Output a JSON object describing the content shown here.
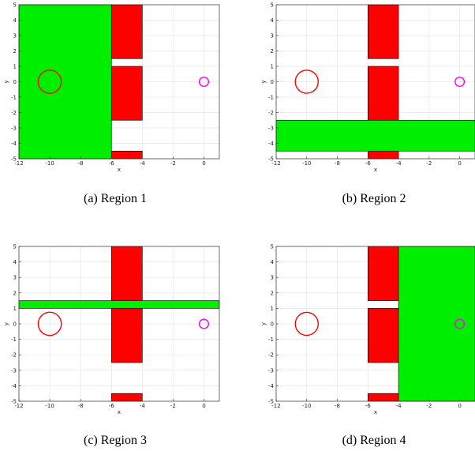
{
  "colors": {
    "free_region": "#00ee00",
    "obstacle": "#ff0000",
    "start_circle": "#ff0000",
    "goal_circle": "#ff00ff",
    "grid": "#e6e6e6",
    "axis": "#333333"
  },
  "chart_data": [
    {
      "type": "region-map",
      "caption": "(a) Region 1",
      "xlabel": "x",
      "ylabel": "y",
      "xlim": [
        -12,
        1
      ],
      "ylim": [
        -5,
        5
      ],
      "xticks": [
        -12,
        -10,
        -8,
        -6,
        -4,
        -2,
        0
      ],
      "yticks": [
        -5,
        -4,
        -3,
        -2,
        -1,
        0,
        1,
        2,
        3,
        4,
        5
      ],
      "grid": true,
      "obstacles": [
        {
          "x0": -6,
          "x1": -4,
          "y0": 1.5,
          "y1": 5
        },
        {
          "x0": -6,
          "x1": -4,
          "y0": -2.5,
          "y1": 1
        },
        {
          "x0": -6,
          "x1": -4,
          "y0": -5,
          "y1": -4.5
        }
      ],
      "region": {
        "x0": -12,
        "x1": -6,
        "y0": -5,
        "y1": 5
      },
      "start": {
        "x": -10,
        "y": 0,
        "r": 0.75
      },
      "goal": {
        "x": 0,
        "y": 0,
        "r": 0.3
      }
    },
    {
      "type": "region-map",
      "caption": "(b) Region 2",
      "xlabel": "x",
      "ylabel": "y",
      "xlim": [
        -12,
        1
      ],
      "ylim": [
        -5,
        5
      ],
      "xticks": [
        -12,
        -10,
        -8,
        -6,
        -4,
        -2,
        0
      ],
      "yticks": [
        -5,
        -4,
        -3,
        -2,
        -1,
        0,
        1,
        2,
        3,
        4,
        5
      ],
      "grid": true,
      "obstacles": [
        {
          "x0": -6,
          "x1": -4,
          "y0": 1.5,
          "y1": 5
        },
        {
          "x0": -6,
          "x1": -4,
          "y0": -5,
          "y1": 1
        }
      ],
      "region": {
        "x0": -12,
        "x1": 1,
        "y0": -4.5,
        "y1": -2.5
      },
      "start": {
        "x": -10,
        "y": 0,
        "r": 0.75
      },
      "goal": {
        "x": 0,
        "y": 0,
        "r": 0.3
      }
    },
    {
      "type": "region-map",
      "caption": "(c) Region 3",
      "xlabel": "x",
      "ylabel": "y",
      "xlim": [
        -12,
        1
      ],
      "ylim": [
        -5,
        5
      ],
      "xticks": [
        -12,
        -10,
        -8,
        -6,
        -4,
        -2,
        0
      ],
      "yticks": [
        -5,
        -4,
        -3,
        -2,
        -1,
        0,
        1,
        2,
        3,
        4,
        5
      ],
      "grid": true,
      "obstacles": [
        {
          "x0": -6,
          "x1": -4,
          "y0": -2.5,
          "y1": 5
        },
        {
          "x0": -6,
          "x1": -4,
          "y0": -5,
          "y1": -4.5
        }
      ],
      "region": {
        "x0": -12,
        "x1": 1,
        "y0": 1,
        "y1": 1.5
      },
      "start": {
        "x": -10,
        "y": 0,
        "r": 0.75
      },
      "goal": {
        "x": 0,
        "y": 0,
        "r": 0.3
      }
    },
    {
      "type": "region-map",
      "caption": "(d) Region 4",
      "xlabel": "x",
      "ylabel": "y",
      "xlim": [
        -12,
        1
      ],
      "ylim": [
        -5,
        5
      ],
      "xticks": [
        -12,
        -10,
        -8,
        -6,
        -4,
        -2,
        0
      ],
      "yticks": [
        -5,
        -4,
        -3,
        -2,
        -1,
        0,
        1,
        2,
        3,
        4,
        5
      ],
      "grid": true,
      "obstacles": [
        {
          "x0": -6,
          "x1": -4,
          "y0": 1.5,
          "y1": 5
        },
        {
          "x0": -6,
          "x1": -4,
          "y0": -2.5,
          "y1": 1
        },
        {
          "x0": -6,
          "x1": -4,
          "y0": -5,
          "y1": -4.5
        }
      ],
      "region": {
        "x0": -4,
        "x1": 1,
        "y0": -5,
        "y1": 5
      },
      "start": {
        "x": -10,
        "y": 0,
        "r": 0.75
      },
      "goal": {
        "x": 0,
        "y": 0,
        "r": 0.3
      }
    }
  ]
}
